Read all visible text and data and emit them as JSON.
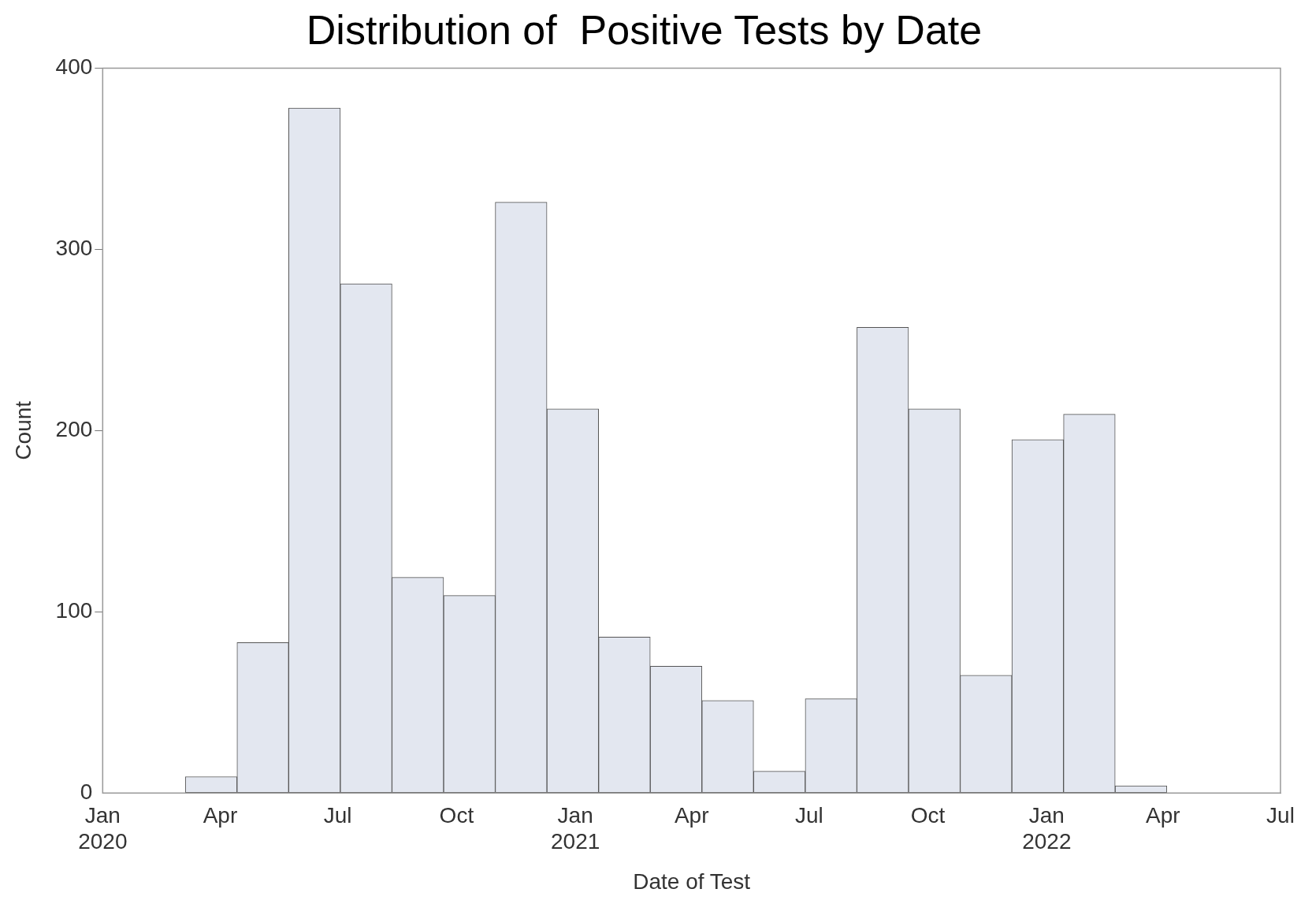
{
  "chart_data": {
    "type": "histogram",
    "title": "Distribution of  Positive Tests by Date",
    "xlabel": "Date of Test",
    "ylabel": "Count",
    "bins": [
      "2020-03-05",
      "2020-04-14",
      "2020-05-24",
      "2020-07-03",
      "2020-08-12",
      "2020-09-21",
      "2020-10-31",
      "2020-12-10",
      "2021-01-19",
      "2021-02-28",
      "2021-04-09",
      "2021-05-19",
      "2021-06-28",
      "2021-08-07",
      "2021-09-16",
      "2021-10-26",
      "2021-12-05",
      "2022-01-14",
      "2022-02-23",
      "2022-04-04"
    ],
    "values": [
      9,
      83,
      378,
      281,
      119,
      109,
      326,
      212,
      86,
      70,
      51,
      12,
      52,
      257,
      212,
      65,
      195,
      209,
      4
    ],
    "color": "#e3e7f0",
    "xlim": [
      "2020-01-01",
      "2022-07-01"
    ],
    "xticks": [
      {
        "value": "2020-01-01",
        "label": "Jan 2020"
      },
      {
        "value": "2020-04-01",
        "label": "Apr"
      },
      {
        "value": "2020-07-01",
        "label": "Jul"
      },
      {
        "value": "2020-10-01",
        "label": "Oct"
      },
      {
        "value": "2021-01-01",
        "label": "Jan 2021"
      },
      {
        "value": "2021-04-01",
        "label": "Apr"
      },
      {
        "value": "2021-07-01",
        "label": "Jul"
      },
      {
        "value": "2021-10-01",
        "label": "Oct"
      },
      {
        "value": "2022-01-01",
        "label": "Jan 2022"
      },
      {
        "value": "2022-04-01",
        "label": "Apr"
      },
      {
        "value": "2022-07-01",
        "label": "Jul"
      }
    ],
    "ylim": [
      0,
      400
    ],
    "yticks": [
      0,
      100,
      200,
      300,
      400
    ],
    "grid": false
  }
}
